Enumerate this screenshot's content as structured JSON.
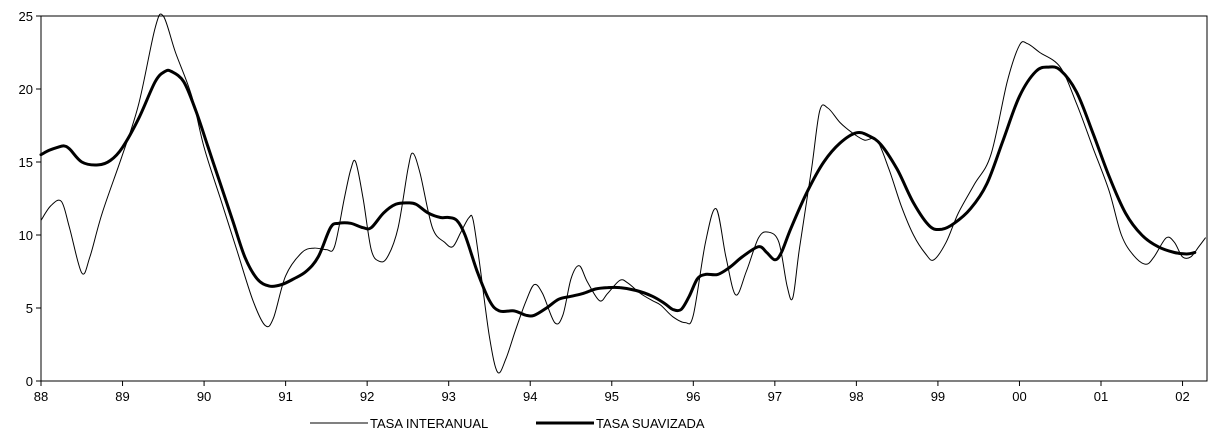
{
  "chart_data": {
    "type": "line",
    "title": "",
    "xlabel": "",
    "ylabel": "",
    "x_tick_labels": [
      "88",
      "89",
      "90",
      "91",
      "92",
      "93",
      "94",
      "95",
      "96",
      "97",
      "98",
      "99",
      "00",
      "01",
      "02"
    ],
    "xlim": [
      0,
      14.3
    ],
    "ylim": [
      0,
      25
    ],
    "y_ticks": [
      0,
      5,
      10,
      15,
      20,
      25
    ],
    "grid": false,
    "legend_position": "bottom-center",
    "series": [
      {
        "name": "TASA INTERANUAL",
        "style": "thin",
        "color": "#000000",
        "points": [
          [
            0.0,
            11.0
          ],
          [
            0.12,
            12.0
          ],
          [
            0.25,
            12.3
          ],
          [
            0.35,
            10.5
          ],
          [
            0.5,
            7.4
          ],
          [
            0.6,
            8.5
          ],
          [
            0.75,
            11.5
          ],
          [
            1.0,
            15.5
          ],
          [
            1.2,
            19.0
          ],
          [
            1.4,
            24.2
          ],
          [
            1.5,
            25.0
          ],
          [
            1.65,
            22.5
          ],
          [
            1.85,
            19.5
          ],
          [
            2.0,
            16.0
          ],
          [
            2.2,
            12.5
          ],
          [
            2.4,
            9.0
          ],
          [
            2.6,
            5.5
          ],
          [
            2.75,
            3.8
          ],
          [
            2.85,
            4.3
          ],
          [
            3.0,
            7.2
          ],
          [
            3.2,
            8.8
          ],
          [
            3.35,
            9.1
          ],
          [
            3.5,
            9.0
          ],
          [
            3.6,
            9.2
          ],
          [
            3.72,
            12.5
          ],
          [
            3.8,
            14.5
          ],
          [
            3.86,
            15.0
          ],
          [
            3.95,
            12.5
          ],
          [
            4.05,
            9.0
          ],
          [
            4.15,
            8.2
          ],
          [
            4.25,
            8.5
          ],
          [
            4.38,
            10.5
          ],
          [
            4.5,
            14.5
          ],
          [
            4.56,
            15.6
          ],
          [
            4.65,
            14.2
          ],
          [
            4.8,
            10.5
          ],
          [
            4.95,
            9.5
          ],
          [
            5.05,
            9.2
          ],
          [
            5.15,
            10.2
          ],
          [
            5.25,
            11.2
          ],
          [
            5.3,
            11.0
          ],
          [
            5.38,
            8.0
          ],
          [
            5.5,
            3.0
          ],
          [
            5.6,
            0.6
          ],
          [
            5.7,
            1.5
          ],
          [
            5.82,
            3.5
          ],
          [
            5.95,
            5.5
          ],
          [
            6.05,
            6.6
          ],
          [
            6.15,
            6.0
          ],
          [
            6.3,
            4.0
          ],
          [
            6.4,
            4.5
          ],
          [
            6.5,
            7.0
          ],
          [
            6.6,
            7.9
          ],
          [
            6.7,
            6.8
          ],
          [
            6.85,
            5.5
          ],
          [
            6.95,
            6.0
          ],
          [
            7.1,
            6.9
          ],
          [
            7.2,
            6.7
          ],
          [
            7.35,
            6.0
          ],
          [
            7.5,
            5.5
          ],
          [
            7.6,
            5.2
          ],
          [
            7.75,
            4.4
          ],
          [
            7.9,
            4.0
          ],
          [
            8.0,
            4.5
          ],
          [
            8.15,
            9.5
          ],
          [
            8.28,
            11.8
          ],
          [
            8.4,
            8.5
          ],
          [
            8.52,
            5.9
          ],
          [
            8.65,
            7.5
          ],
          [
            8.8,
            9.8
          ],
          [
            8.92,
            10.2
          ],
          [
            9.05,
            9.5
          ],
          [
            9.15,
            6.5
          ],
          [
            9.22,
            5.7
          ],
          [
            9.3,
            9.0
          ],
          [
            9.45,
            14.5
          ],
          [
            9.55,
            18.5
          ],
          [
            9.65,
            18.7
          ],
          [
            9.8,
            17.7
          ],
          [
            9.95,
            17.0
          ],
          [
            10.1,
            16.5
          ],
          [
            10.25,
            16.5
          ],
          [
            10.4,
            14.5
          ],
          [
            10.55,
            12.0
          ],
          [
            10.7,
            10.0
          ],
          [
            10.85,
            8.7
          ],
          [
            10.95,
            8.3
          ],
          [
            11.1,
            9.5
          ],
          [
            11.25,
            11.5
          ],
          [
            11.45,
            13.5
          ],
          [
            11.65,
            15.5
          ],
          [
            11.85,
            20.5
          ],
          [
            12.0,
            23.0
          ],
          [
            12.1,
            23.1
          ],
          [
            12.25,
            22.5
          ],
          [
            12.5,
            21.5
          ],
          [
            12.7,
            19.0
          ],
          [
            12.9,
            16.0
          ],
          [
            13.1,
            13.0
          ],
          [
            13.25,
            10.0
          ],
          [
            13.4,
            8.6
          ],
          [
            13.55,
            8.0
          ],
          [
            13.65,
            8.5
          ],
          [
            13.8,
            9.8
          ],
          [
            13.9,
            9.5
          ],
          [
            14.0,
            8.5
          ],
          [
            14.1,
            8.5
          ],
          [
            14.2,
            9.2
          ],
          [
            14.28,
            9.8
          ]
        ]
      },
      {
        "name": "TASA SUAVIZADA",
        "style": "thick",
        "color": "#000000",
        "points": [
          [
            0.0,
            15.5
          ],
          [
            0.1,
            15.8
          ],
          [
            0.2,
            16.0
          ],
          [
            0.28,
            16.1
          ],
          [
            0.35,
            15.9
          ],
          [
            0.5,
            15.0
          ],
          [
            0.7,
            14.8
          ],
          [
            0.85,
            15.1
          ],
          [
            1.0,
            16.0
          ],
          [
            1.2,
            18.0
          ],
          [
            1.4,
            20.5
          ],
          [
            1.52,
            21.2
          ],
          [
            1.6,
            21.2
          ],
          [
            1.75,
            20.5
          ],
          [
            1.9,
            18.5
          ],
          [
            2.05,
            16.0
          ],
          [
            2.2,
            13.5
          ],
          [
            2.35,
            11.0
          ],
          [
            2.5,
            8.5
          ],
          [
            2.65,
            7.0
          ],
          [
            2.8,
            6.5
          ],
          [
            2.95,
            6.6
          ],
          [
            3.1,
            7.0
          ],
          [
            3.25,
            7.5
          ],
          [
            3.4,
            8.5
          ],
          [
            3.55,
            10.5
          ],
          [
            3.65,
            10.8
          ],
          [
            3.8,
            10.8
          ],
          [
            3.95,
            10.5
          ],
          [
            4.05,
            10.5
          ],
          [
            4.2,
            11.5
          ],
          [
            4.35,
            12.1
          ],
          [
            4.5,
            12.2
          ],
          [
            4.6,
            12.1
          ],
          [
            4.75,
            11.5
          ],
          [
            4.9,
            11.2
          ],
          [
            5.0,
            11.2
          ],
          [
            5.1,
            11.0
          ],
          [
            5.2,
            10.0
          ],
          [
            5.35,
            7.5
          ],
          [
            5.5,
            5.5
          ],
          [
            5.62,
            4.8
          ],
          [
            5.8,
            4.8
          ],
          [
            5.95,
            4.5
          ],
          [
            6.05,
            4.5
          ],
          [
            6.2,
            5.0
          ],
          [
            6.35,
            5.6
          ],
          [
            6.5,
            5.8
          ],
          [
            6.65,
            6.0
          ],
          [
            6.8,
            6.3
          ],
          [
            6.95,
            6.4
          ],
          [
            7.1,
            6.4
          ],
          [
            7.3,
            6.2
          ],
          [
            7.5,
            5.8
          ],
          [
            7.65,
            5.3
          ],
          [
            7.75,
            4.9
          ],
          [
            7.85,
            4.9
          ],
          [
            7.95,
            5.8
          ],
          [
            8.05,
            7.0
          ],
          [
            8.15,
            7.3
          ],
          [
            8.3,
            7.3
          ],
          [
            8.45,
            7.8
          ],
          [
            8.6,
            8.5
          ],
          [
            8.8,
            9.2
          ],
          [
            8.9,
            8.8
          ],
          [
            9.0,
            8.3
          ],
          [
            9.08,
            8.8
          ],
          [
            9.2,
            10.5
          ],
          [
            9.4,
            13.0
          ],
          [
            9.6,
            15.0
          ],
          [
            9.8,
            16.3
          ],
          [
            10.0,
            17.0
          ],
          [
            10.15,
            16.8
          ],
          [
            10.3,
            16.2
          ],
          [
            10.5,
            14.5
          ],
          [
            10.7,
            12.2
          ],
          [
            10.9,
            10.6
          ],
          [
            11.05,
            10.4
          ],
          [
            11.2,
            10.8
          ],
          [
            11.4,
            11.8
          ],
          [
            11.6,
            13.5
          ],
          [
            11.8,
            16.5
          ],
          [
            12.0,
            19.5
          ],
          [
            12.2,
            21.2
          ],
          [
            12.35,
            21.5
          ],
          [
            12.5,
            21.3
          ],
          [
            12.7,
            19.8
          ],
          [
            12.9,
            17.0
          ],
          [
            13.1,
            14.0
          ],
          [
            13.3,
            11.5
          ],
          [
            13.5,
            10.0
          ],
          [
            13.7,
            9.2
          ],
          [
            13.9,
            8.8
          ],
          [
            14.05,
            8.7
          ],
          [
            14.15,
            8.8
          ]
        ]
      }
    ]
  }
}
